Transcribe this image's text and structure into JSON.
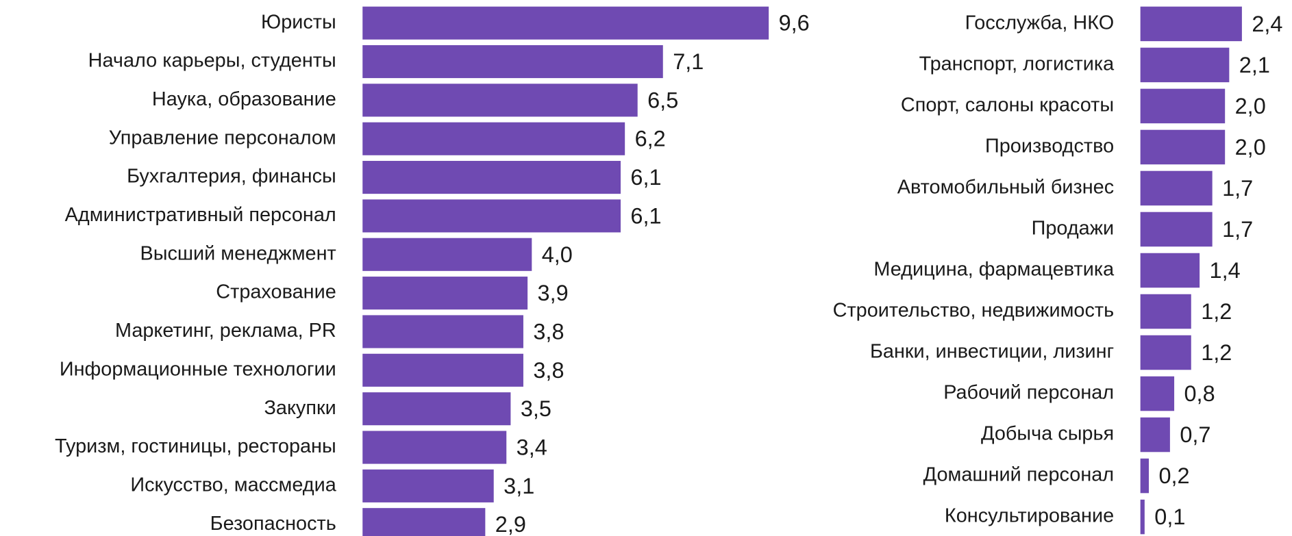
{
  "chart_data": [
    {
      "type": "bar",
      "orientation": "horizontal",
      "color": "#6f4ab2",
      "categories": [
        "Юристы",
        "Начало карьеры, студенты",
        "Наука, образование",
        "Управление персоналом",
        "Бухгалтерия, финансы",
        "Административный персонал",
        "Высший менеджмент",
        "Страхование",
        "Маркетинг, реклама, PR",
        "Информационные технологии",
        "Закупки",
        "Туризм, гостиницы, рестораны",
        "Искусство, массмедиа",
        "Безопасность"
      ],
      "values": [
        9.6,
        7.1,
        6.5,
        6.2,
        6.1,
        6.1,
        4.0,
        3.9,
        3.8,
        3.8,
        3.5,
        3.4,
        3.1,
        2.9
      ],
      "value_labels": [
        "9,6",
        "7,1",
        "6,5",
        "6,2",
        "6,1",
        "6,1",
        "4,0",
        "3,9",
        "3,8",
        "3,8",
        "3,5",
        "3,4",
        "3,1",
        "2,9"
      ]
    },
    {
      "type": "bar",
      "orientation": "horizontal",
      "color": "#6f4ab2",
      "categories": [
        "Госслужба, НКО",
        "Транспорт, логистика",
        "Спорт, салоны красоты",
        "Производство",
        "Автомобильный бизнес",
        "Продажи",
        "Медицина, фармацевтика",
        "Строительство, недвижимость",
        "Банки, инвестиции, лизинг",
        "Рабочий персонал",
        "Добыча сырья",
        "Домашний персонал",
        "Консультирование"
      ],
      "values": [
        2.4,
        2.1,
        2.0,
        2.0,
        1.7,
        1.7,
        1.4,
        1.2,
        1.2,
        0.8,
        0.7,
        0.2,
        0.1
      ],
      "value_labels": [
        "2,4",
        "2,1",
        "2,0",
        "2,0",
        "1,7",
        "1,7",
        "1,4",
        "1,2",
        "1,2",
        "0,8",
        "0,7",
        "0,2",
        "0,1"
      ]
    }
  ]
}
